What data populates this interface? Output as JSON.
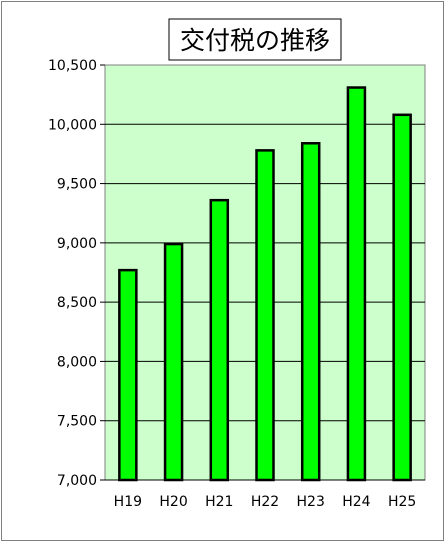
{
  "chart_data": {
    "type": "bar",
    "title": "交付税の推移",
    "categories": [
      "H19",
      "H20",
      "H21",
      "H22",
      "H23",
      "H24",
      "H25"
    ],
    "values": [
      8770,
      8990,
      9360,
      9780,
      9840,
      10310,
      10080
    ],
    "ylim": [
      7000,
      10500
    ],
    "yticks": [
      7000,
      7500,
      8000,
      8500,
      9000,
      9500,
      10000,
      10500
    ],
    "ytick_labels": [
      "7,000",
      "7,500",
      "8,000",
      "8,500",
      "9,000",
      "9,500",
      "10,000",
      "10,500"
    ],
    "grid": true,
    "xlabel": "",
    "ylabel": "",
    "colors": {
      "plot_background": "#ccffcc",
      "bar_fill": "#00ff00",
      "bar_stroke": "#000000",
      "frame": "#808080"
    }
  }
}
